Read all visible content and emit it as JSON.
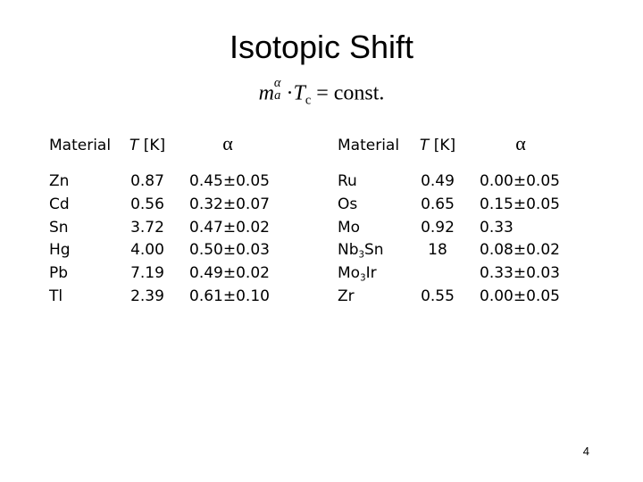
{
  "title": "Isotopic Shift",
  "formula": {
    "m": "m",
    "m_sub": "a",
    "m_sup": "α",
    "dot": "·",
    "T": "T",
    "T_sub": "c",
    "rhs": "= const."
  },
  "tables": [
    {
      "headers": {
        "material": "Material",
        "temperature": {
          "symbol": "T",
          "unit": "[K]"
        },
        "alpha": "α"
      },
      "rows": [
        {
          "material": [
            "Zn"
          ],
          "temperature": "0.87",
          "alpha": "0.45±0.05"
        },
        {
          "material": [
            "Cd"
          ],
          "temperature": "0.56",
          "alpha": "0.32±0.07"
        },
        {
          "material": [
            "Sn"
          ],
          "temperature": "3.72",
          "alpha": "0.47±0.02"
        },
        {
          "material": [
            "Hg"
          ],
          "temperature": "4.00",
          "alpha": "0.50±0.03"
        },
        {
          "material": [
            "Pb"
          ],
          "temperature": "7.19",
          "alpha": "0.49±0.02"
        },
        {
          "material": [
            "Tl"
          ],
          "temperature": "2.39",
          "alpha": "0.61±0.10"
        }
      ]
    },
    {
      "headers": {
        "material": "Material",
        "temperature": {
          "symbol": "T",
          "unit": "[K]"
        },
        "alpha": "α"
      },
      "rows": [
        {
          "material": [
            "Ru"
          ],
          "temperature": "0.49",
          "alpha": "0.00±0.05"
        },
        {
          "material": [
            "Os"
          ],
          "temperature": "0.65",
          "alpha": "0.15±0.05"
        },
        {
          "material": [
            "Mo"
          ],
          "temperature": "0.92",
          "alpha": "0.33"
        },
        {
          "material": [
            "Nb",
            "3",
            "Sn"
          ],
          "temperature": "18",
          "alpha": "0.08±0.02"
        },
        {
          "material": [
            "Mo",
            "3",
            "Ir"
          ],
          "temperature": null,
          "alpha": "0.33±0.03"
        },
        {
          "material": [
            "Zr"
          ],
          "temperature": "0.55",
          "alpha": "0.00±0.05"
        }
      ]
    }
  ],
  "page_number": "4"
}
